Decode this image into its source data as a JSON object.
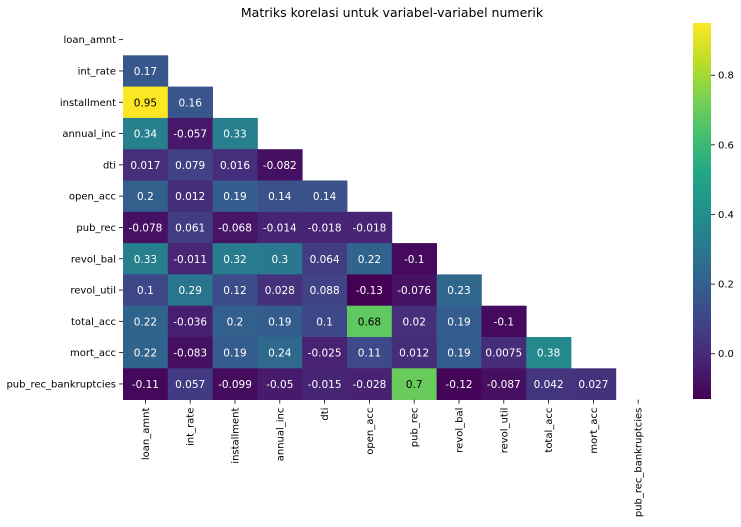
{
  "chart_data": {
    "type": "heatmap",
    "title": "Matriks korelasi untuk variabel-variabel numerik",
    "xlabel": "",
    "ylabel": "",
    "labels": [
      "loan_amnt",
      "int_rate",
      "installment",
      "annual_inc",
      "dti",
      "open_acc",
      "pub_rec",
      "revol_bal",
      "revol_util",
      "total_acc",
      "mort_acc",
      "pub_rec_bankruptcies"
    ],
    "mask": "upper-triangle-including-diagonal",
    "rows": [
      [],
      [
        "0.17"
      ],
      [
        "0.95",
        "0.16"
      ],
      [
        "0.34",
        "-0.057",
        "0.33"
      ],
      [
        "0.017",
        "0.079",
        "0.016",
        "-0.082"
      ],
      [
        "0.2",
        "0.012",
        "0.19",
        "0.14",
        "0.14"
      ],
      [
        "-0.078",
        "0.061",
        "-0.068",
        "-0.014",
        "-0.018",
        "-0.018"
      ],
      [
        "0.33",
        "-0.011",
        "0.32",
        "0.3",
        "0.064",
        "0.22",
        "-0.1"
      ],
      [
        "0.1",
        "0.29",
        "0.12",
        "0.028",
        "0.088",
        "-0.13",
        "-0.076",
        "0.23"
      ],
      [
        "0.22",
        "-0.036",
        "0.2",
        "0.19",
        "0.1",
        "0.68",
        "0.02",
        "0.19",
        "-0.1"
      ],
      [
        "0.22",
        "-0.083",
        "0.19",
        "0.24",
        "-0.025",
        "0.11",
        "0.012",
        "0.19",
        "0.0075",
        "0.38"
      ],
      [
        "-0.11",
        "0.057",
        "-0.099",
        "-0.05",
        "-0.015",
        "-0.028",
        "0.7",
        "-0.12",
        "-0.087",
        "0.042",
        "0.027"
      ]
    ],
    "colormap": "viridis",
    "vmin": -0.13,
    "vmax": 0.95,
    "colorbar_ticks": [
      "0.0",
      "0.2",
      "0.4",
      "0.6",
      "0.8"
    ],
    "colors": {
      "text_light": "#ffffff",
      "text_dark": "#000000",
      "tick": "#000000"
    }
  }
}
